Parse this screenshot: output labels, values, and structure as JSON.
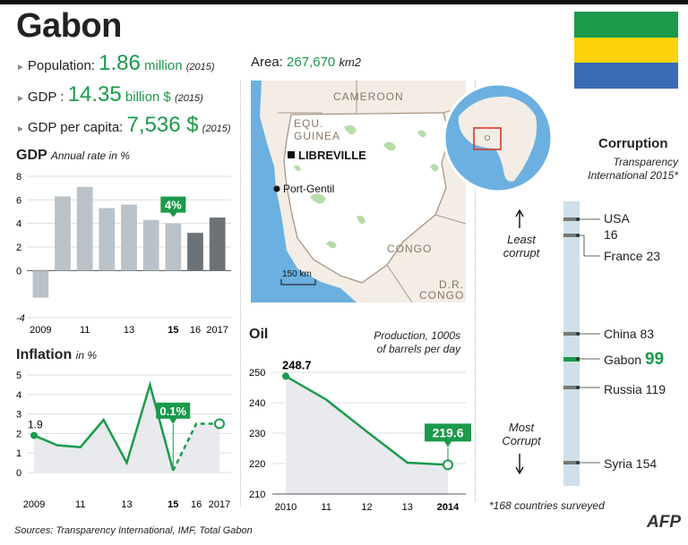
{
  "title": "Gabon",
  "flag_colors": [
    "#1c9a4c",
    "#fbd20c",
    "#3b6bb4"
  ],
  "colors": {
    "green": "#1a9a4a",
    "bar_gray": "#b9c2c8",
    "bar_dark": "#6c7378",
    "map_sea": "#6bb0e0",
    "map_land": "#f3ede5"
  },
  "stats": {
    "population": {
      "label": "Population:",
      "value": "1.86",
      "unit": "million",
      "year": "(2015)"
    },
    "area": {
      "label": "Area:",
      "value": "267,670",
      "unit": "km2"
    },
    "gdp": {
      "label": "GDP :",
      "value": "14.35",
      "unit": "billion $",
      "year": "(2015)"
    },
    "gdp_per_capita": {
      "label": "GDP per capita:",
      "value": "7,536 $",
      "year": "(2015)"
    }
  },
  "gdp_title": "GDP",
  "gdp_subtitle": "Annual rate in %",
  "inflation_title": "Inflation",
  "inflation_subtitle": "in %",
  "oil_title": "Oil",
  "oil_subtitle_1": "Production, 1000s",
  "oil_subtitle_2": "of barrels per day",
  "map": {
    "countries": [
      "CAMEROON",
      "EQU.",
      "GUINEA",
      "CONGO",
      "D.R.",
      "CONGO"
    ],
    "cities": [
      "LIBREVILLE",
      "Port-Gentil"
    ],
    "scale": "150 km"
  },
  "corruption": {
    "title": "Corruption",
    "subtitle_1": "Transparency",
    "subtitle_2": "International 2015*",
    "least_1": "Least",
    "least_2": "corrupt",
    "most_1": "Most",
    "most_2": "Corrupt",
    "usa": "USA",
    "usa_rank": "16",
    "france": "France 23",
    "china": "China 83",
    "gabon_name": "Gabon",
    "gabon_rank": "99",
    "russia": "Russia 119",
    "syria": "Syria 154",
    "note": "*168 countries surveyed"
  },
  "source": "Sources: Transparency International, IMF, Total Gabon",
  "logo": "AFP",
  "chart_data": [
    {
      "type": "bar",
      "title": "GDP",
      "subtitle": "Annual rate in %",
      "categories": [
        "2009",
        "2010",
        "2011",
        "2012",
        "2013",
        "2014",
        "2015",
        "2016",
        "2017"
      ],
      "tick_labels": [
        "2009",
        "",
        "11",
        "",
        "13",
        "",
        "15",
        "16",
        "2017"
      ],
      "values": [
        -2.3,
        6.3,
        7.1,
        5.3,
        5.6,
        4.3,
        4.0,
        3.2,
        4.5
      ],
      "highlight_index": 6,
      "highlight_label": "4%",
      "dark_from_index": 7,
      "ylim": [
        -4,
        8
      ],
      "yticks": [
        "-4",
        "0",
        "2",
        "4",
        "6",
        "8"
      ]
    },
    {
      "type": "line",
      "title": "Inflation",
      "subtitle": "in %",
      "x": [
        "2009",
        "2010",
        "2011",
        "2012",
        "2013",
        "2014",
        "2015",
        "2016",
        "2017"
      ],
      "tick_labels": [
        "2009",
        "",
        "11",
        "",
        "13",
        "",
        "15",
        "16",
        "2017"
      ],
      "values": [
        1.9,
        1.4,
        1.3,
        2.7,
        0.5,
        4.5,
        0.1,
        2.5,
        2.5
      ],
      "start_label": "1.9",
      "highlight_label": "0.1%",
      "ylim": [
        0,
        5
      ],
      "yticks": [
        "0",
        "1",
        "2",
        "3",
        "4",
        "5"
      ]
    },
    {
      "type": "line",
      "title": "Oil",
      "subtitle": "Production, 1000s of barrels per day",
      "x": [
        "2010",
        "2011",
        "2012",
        "2013",
        "2014"
      ],
      "tick_labels": [
        "2010",
        "11",
        "12",
        "13",
        "2014"
      ],
      "values": [
        248.7,
        241.0,
        230.5,
        220.3,
        219.6
      ],
      "start_label": "248.7",
      "end_label": "219.6",
      "ylim": [
        210,
        250
      ],
      "yticks": [
        "210",
        "220",
        "230",
        "240",
        "250"
      ]
    }
  ]
}
